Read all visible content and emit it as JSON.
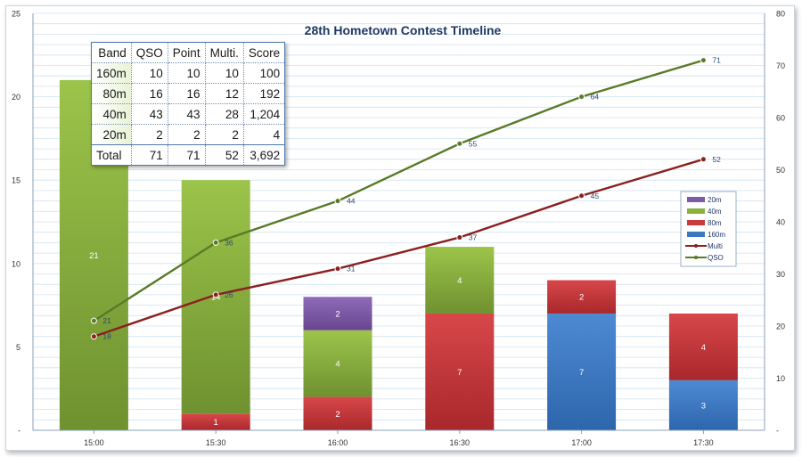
{
  "chart_data": {
    "type": "bar",
    "title": "28th Hometown Contest Timeline",
    "categories": [
      "15:00",
      "15:30",
      "16:00",
      "16:30",
      "17:00",
      "17:30"
    ],
    "y_left": {
      "ylim": [
        0,
        25
      ],
      "ticks": [
        "-",
        "5",
        "10",
        "15",
        "20",
        "25"
      ]
    },
    "y_right": {
      "ylim": [
        0,
        80
      ],
      "ticks": [
        "-",
        "10",
        "20",
        "30",
        "40",
        "50",
        "60",
        "70",
        "80"
      ]
    },
    "stacked_series": [
      {
        "name": "160m",
        "color": "#3b78c3",
        "values": [
          0,
          0,
          0,
          0,
          7,
          3
        ]
      },
      {
        "name": "80m",
        "color": "#c9383a",
        "values": [
          0,
          1,
          2,
          7,
          2,
          4
        ]
      },
      {
        "name": "40m",
        "color": "#8bb13d",
        "values": [
          21,
          14,
          4,
          4,
          0,
          0
        ]
      },
      {
        "name": "20m",
        "color": "#7e5ba6",
        "values": [
          0,
          0,
          2,
          0,
          0,
          0
        ]
      }
    ],
    "line_series": [
      {
        "name": "QSO",
        "color": "#5a7a26",
        "axis": "right",
        "values": [
          21,
          36,
          44,
          55,
          64,
          71
        ]
      },
      {
        "name": "Multi",
        "color": "#8c1f1f",
        "axis": "right",
        "values": [
          18,
          26,
          31,
          37,
          45,
          52
        ]
      }
    ],
    "legend": {
      "position": "right",
      "entries": [
        {
          "name": "20m",
          "kind": "bar",
          "color": "#7e5ba6"
        },
        {
          "name": "40m",
          "kind": "bar",
          "color": "#8bb13d"
        },
        {
          "name": "80m",
          "kind": "bar",
          "color": "#c9383a"
        },
        {
          "name": "160m",
          "kind": "bar",
          "color": "#3b78c3"
        },
        {
          "name": "Multi",
          "kind": "line",
          "color": "#8c1f1f"
        },
        {
          "name": "QSO",
          "kind": "line",
          "color": "#5a7a26"
        }
      ]
    }
  },
  "table": {
    "headers": [
      "Band",
      "QSO",
      "Point",
      "Multi.",
      "Score"
    ],
    "rows": [
      [
        "160m",
        "10",
        "10",
        "10",
        "100"
      ],
      [
        "80m",
        "16",
        "16",
        "12",
        "192"
      ],
      [
        "40m",
        "43",
        "43",
        "28",
        "1,204"
      ],
      [
        "20m",
        "2",
        "2",
        "2",
        "4"
      ]
    ],
    "total": [
      "Total",
      "71",
      "71",
      "52",
      "3,692"
    ]
  }
}
